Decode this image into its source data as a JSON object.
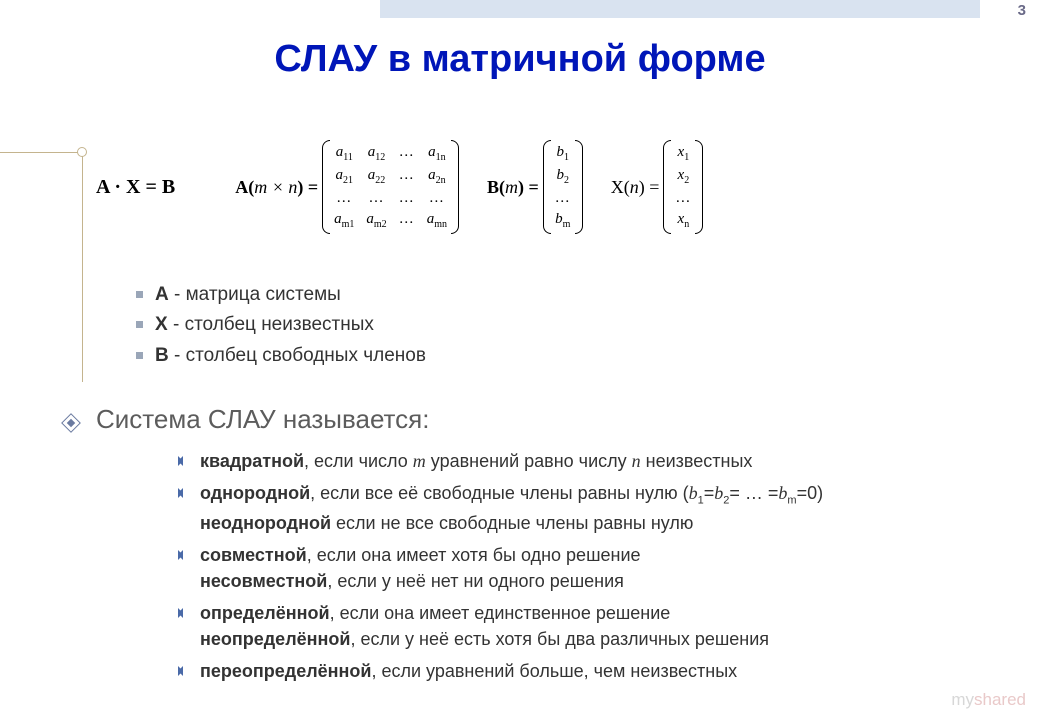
{
  "page_number": "3",
  "title": "СЛАУ в матричной форме",
  "colors": {
    "title": "#0016b8",
    "body_text": "#333333",
    "top_bar": "#d9e3f0",
    "guide_line": "#c4b48e",
    "square_bullet": "#9aa6b8",
    "diamond_bullet": "#4a6aa8",
    "page_num": "#6a6a88",
    "watermark": "#d7d7d7"
  },
  "fonts": {
    "title_size_pt": 38,
    "body_size_pt": 19,
    "section_size_pt": 26,
    "math_family": "Times New Roman"
  },
  "equation": "A · X = B",
  "matrix_A": {
    "label_prefix": "A(",
    "dims": "m × n",
    "label_suffix": ") =",
    "rows": [
      [
        "a<sub>11</sub>",
        "a<sub>12</sub>",
        "…",
        "a<sub>1n</sub>"
      ],
      [
        "a<sub>21</sub>",
        "a<sub>22</sub>",
        "…",
        "a<sub>2n</sub>"
      ],
      [
        "…",
        "…",
        "…",
        "…"
      ],
      [
        "a<sub>m1</sub>",
        "a<sub>m2</sub>",
        "…",
        "a<sub>mn</sub>"
      ]
    ]
  },
  "matrix_B": {
    "label_prefix": "B(",
    "dims": "m",
    "label_suffix": ") =",
    "rows": [
      [
        "b<sub>1</sub>"
      ],
      [
        "b<sub>2</sub>"
      ],
      [
        "…"
      ],
      [
        "b<sub>m</sub>"
      ]
    ]
  },
  "matrix_X": {
    "label_prefix": "X(",
    "dims": "n",
    "label_suffix": ") =",
    "rows": [
      [
        "x<sub>1</sub>"
      ],
      [
        "x<sub>2</sub>"
      ],
      [
        "…"
      ],
      [
        "x<sub>n</sub>"
      ]
    ]
  },
  "definitions": [
    "<b>A</b> - матрица системы",
    "<b>X</b> - столбец неизвестных",
    "<b>B</b> - столбец свободных членов"
  ],
  "section2_title": "Система СЛАУ называется:",
  "types": [
    "<b>квадратной</b>, если число <i>m</i> уравнений равно числу <i>n</i> неизвестных",
    "<b>однородной</b>, если все её свободные члены равны нулю (<i>b</i><sub>1</sub>=<i>b</i><sub>2</sub>= … =<i>b</i><sub>m</sub>=0)<br><b>неоднородной</b> если не все свободные члены равны нулю",
    "<b>совместной</b>, если она имеет хотя бы одно решение<br><b>несовместной</b>, если у неё нет ни одного решения",
    "<b>определённой</b>, если она имеет единственное решение<br><b>неопределённой</b>, если у неё есть хотя бы два различных решения",
    "<b>переопределённой</b>, если уравнений больше, чем неизвестных"
  ],
  "watermark": {
    "part1": "my",
    "part2": "shared"
  }
}
